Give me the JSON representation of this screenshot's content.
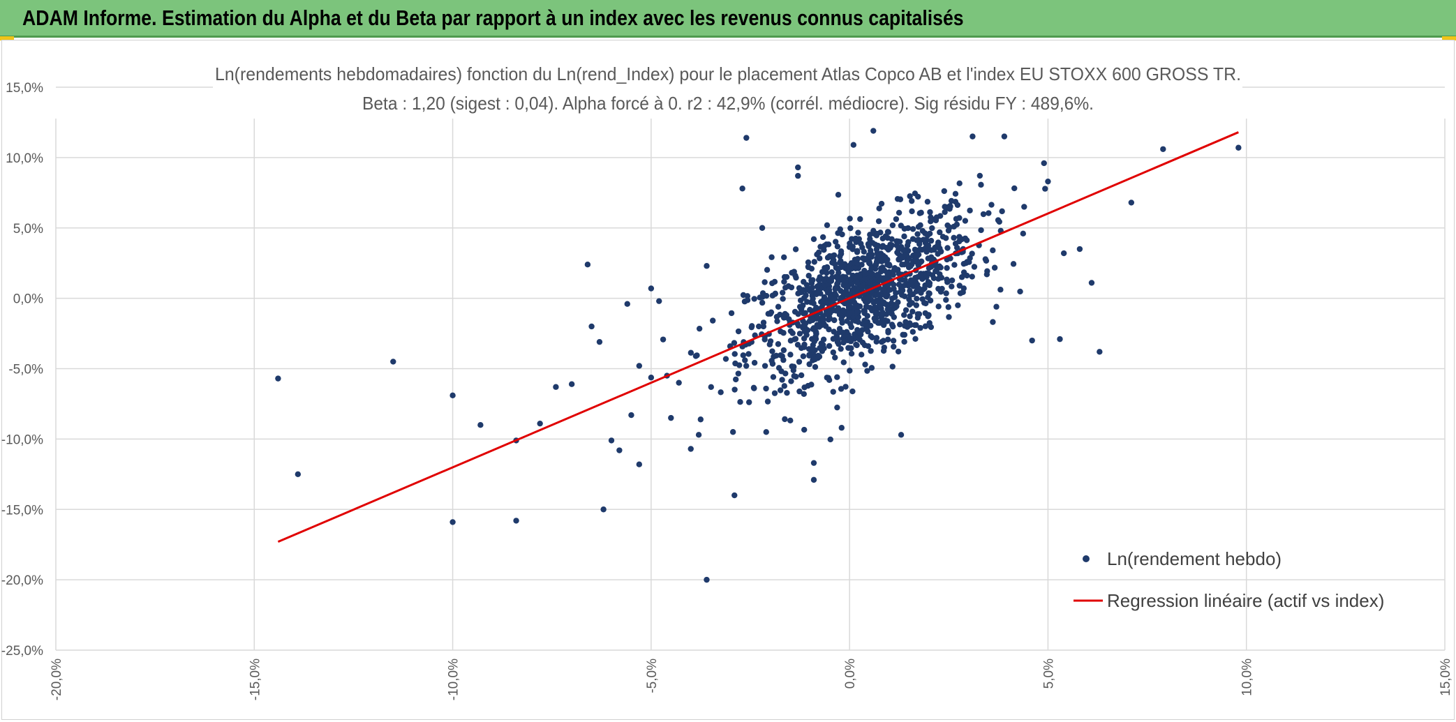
{
  "header": {
    "title": "ADAM Informe. Estimation du Alpha et du Beta par rapport à un index avec les revenus connus capitalisés"
  },
  "colors": {
    "header_bg": "#7cc47c",
    "points": "#1f3a6b",
    "regression": "#e00000",
    "grid": "#d9d9d9"
  },
  "chart_data": {
    "type": "scatter",
    "title_lines": [
      "Ln(rendements hebdomadaires) fonction du Ln(rend_Index) pour le placement Atlas Copco AB et l'index EU STOXX 600 GROSS TR.",
      "Beta : 1,20 (sigest : 0,04). Alpha forcé à 0. r2 : 42,9% (corrél. médiocre). Sig résidu FY : 489,6%."
    ],
    "xlim": [
      -20,
      15
    ],
    "ylim": [
      -25,
      15
    ],
    "x_ticks": [
      -20,
      -15,
      -10,
      -5,
      0,
      5,
      10,
      15
    ],
    "x_tick_labels": [
      "-20,0%",
      "-15,0%",
      "-10,0%",
      "-5,0%",
      "0,0%",
      "5,0%",
      "10,0%",
      "15,0%"
    ],
    "y_ticks": [
      15,
      10,
      5,
      0,
      -5,
      -10,
      -15,
      -20,
      -25
    ],
    "y_tick_labels": [
      "15,0%",
      "10,0%",
      "5,0%",
      "0,0%",
      "-5,0%",
      "-10,0%",
      "-15,0%",
      "-20,0%",
      "-25,0%"
    ],
    "grid": true,
    "legend_position": "bottom-right",
    "series": [
      {
        "name": "Ln(rendement hebdo)",
        "kind": "scatter",
        "points": [
          [
            -14.4,
            -5.7
          ],
          [
            -13.9,
            -12.5
          ],
          [
            -11.5,
            -4.5
          ],
          [
            -10.0,
            -6.9
          ],
          [
            -10.0,
            -15.9
          ],
          [
            -9.3,
            -9.0
          ],
          [
            -8.4,
            -15.8
          ],
          [
            -8.4,
            -10.1
          ],
          [
            -7.8,
            -8.9
          ],
          [
            -7.4,
            -6.3
          ],
          [
            -7.0,
            -6.1
          ],
          [
            -6.6,
            2.4
          ],
          [
            -6.5,
            -2.0
          ],
          [
            -6.3,
            -3.1
          ],
          [
            -6.2,
            -15.0
          ],
          [
            -6.0,
            -10.1
          ],
          [
            -5.8,
            -10.8
          ],
          [
            -5.6,
            -0.4
          ],
          [
            -5.5,
            -8.3
          ],
          [
            -5.3,
            -11.8
          ],
          [
            -5.3,
            -4.8
          ],
          [
            -5.0,
            0.7
          ],
          [
            -4.8,
            -0.2
          ],
          [
            -4.6,
            -5.5
          ],
          [
            -4.5,
            -8.5
          ],
          [
            -4.3,
            -6.0
          ],
          [
            -4.0,
            -10.7
          ],
          [
            -3.6,
            2.3
          ],
          [
            -3.6,
            -20.0
          ],
          [
            -3.8,
            -9.7
          ],
          [
            -2.9,
            -14.0
          ],
          [
            -2.6,
            11.4
          ],
          [
            -2.7,
            7.8
          ],
          [
            -2.2,
            5.0
          ],
          [
            -2.1,
            -9.5
          ],
          [
            -1.3,
            9.3
          ],
          [
            -1.3,
            8.7
          ],
          [
            -0.9,
            -12.9
          ],
          [
            -0.9,
            -11.7
          ],
          [
            -0.2,
            -9.2
          ],
          [
            0.1,
            10.9
          ],
          [
            0.6,
            11.9
          ],
          [
            1.3,
            -9.7
          ],
          [
            3.1,
            11.5
          ],
          [
            3.7,
            -0.6
          ],
          [
            3.9,
            11.5
          ],
          [
            4.6,
            -3.0
          ],
          [
            5.3,
            -2.9
          ],
          [
            5.4,
            3.2
          ],
          [
            5.8,
            3.5
          ],
          [
            6.1,
            1.1
          ],
          [
            6.3,
            -3.8
          ],
          [
            7.1,
            6.8
          ],
          [
            7.9,
            10.6
          ],
          [
            9.8,
            10.7
          ],
          [
            5.0,
            8.3
          ],
          [
            4.9,
            9.6
          ],
          [
            4.4,
            6.5
          ],
          [
            -0.5,
            3.0
          ],
          [
            0.3,
            -4.0
          ]
        ],
        "cluster": {
          "count": 1150,
          "x_sd": 1.45,
          "beta": 1.2,
          "resid_sd": 2.35,
          "x_range": [
            -5.0,
            5.0
          ]
        }
      },
      {
        "name": "Regression linéaire (actif vs index)",
        "kind": "line",
        "points": [
          [
            -14.4,
            -17.3
          ],
          [
            9.8,
            11.8
          ]
        ]
      }
    ]
  }
}
